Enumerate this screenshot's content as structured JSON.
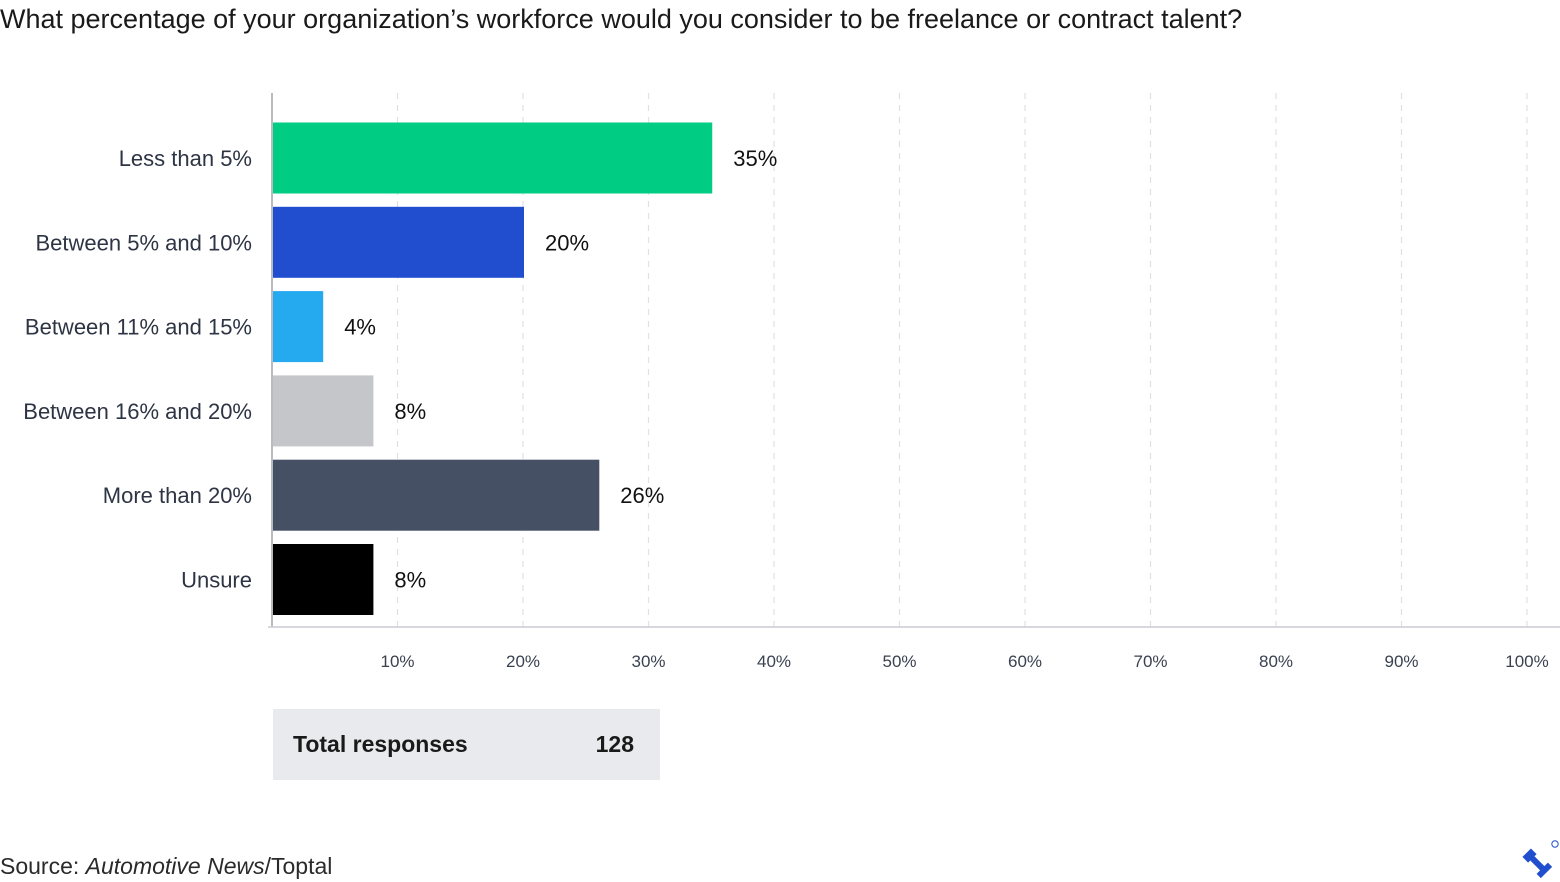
{
  "title": "What percentage of your organization’s workforce would you consider to be freelance or contract talent?",
  "chart_data": {
    "type": "bar",
    "orientation": "horizontal",
    "title": "What percentage of your organization’s workforce would you consider to be freelance or contract talent?",
    "categories": [
      "Less than 5%",
      "Between 5% and 10%",
      "Between 11% and 15%",
      "Between 16% and 20%",
      "More than 20%",
      "Unsure"
    ],
    "values": [
      35,
      20,
      4,
      8,
      26,
      8
    ],
    "value_labels": [
      "35%",
      "20%",
      "4%",
      "8%",
      "26%",
      "8%"
    ],
    "bar_colors": [
      "#00cc83",
      "#204ecf",
      "#25a9ef",
      "#c5c6ca",
      "#455065",
      "#000000"
    ],
    "xlim": [
      0,
      100
    ],
    "x_ticks": [
      "10%",
      "20%",
      "30%",
      "40%",
      "50%",
      "60%",
      "70%",
      "80%",
      "90%",
      "100%"
    ],
    "grid": true,
    "xlabel": "",
    "ylabel": ""
  },
  "summary": {
    "label": "Total responses",
    "value": "128"
  },
  "source": {
    "prefix": "Source: ",
    "publication": "Automotive News",
    "suffix": "/Toptal"
  },
  "logo_icon": "toptal-logo-icon"
}
